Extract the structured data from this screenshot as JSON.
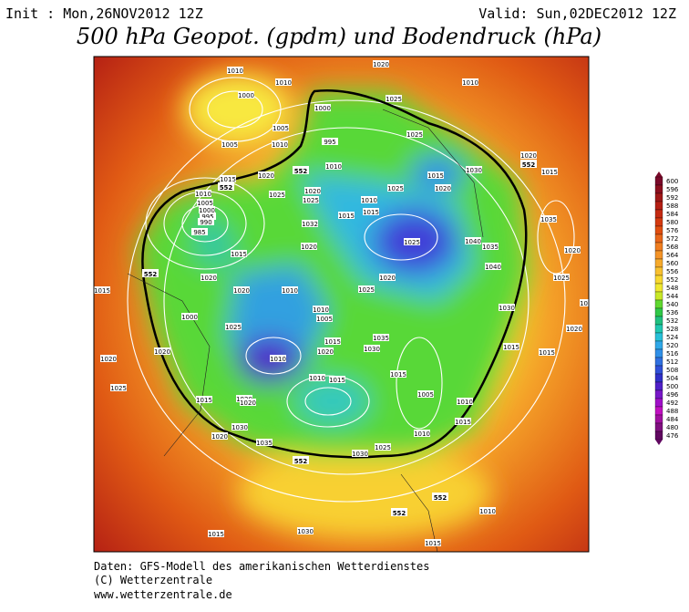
{
  "header": {
    "init": "Init : Mon,26NOV2012 12Z",
    "valid": "Valid: Sun,02DEC2012 12Z",
    "title": "500 hPa Geopot. (gpdm) und Bodendruck (hPa)"
  },
  "colorbar": {
    "labels": [
      600,
      596,
      592,
      588,
      584,
      580,
      576,
      572,
      568,
      564,
      560,
      556,
      552,
      548,
      544,
      540,
      536,
      532,
      528,
      524,
      520,
      516,
      512,
      508,
      504,
      500,
      496,
      492,
      488,
      484,
      480,
      476
    ],
    "colors": [
      "#7a0a2a",
      "#8c0f1f",
      "#a01818",
      "#b41f14",
      "#c42a12",
      "#d43a10",
      "#e04e10",
      "#e8661a",
      "#f07e20",
      "#f49428",
      "#f6aa2c",
      "#f8c030",
      "#f8d830",
      "#f0e830",
      "#c8e828",
      "#60d830",
      "#30c848",
      "#20c080",
      "#20c8b0",
      "#28c0d8",
      "#30a8e8",
      "#3090e8",
      "#3070e0",
      "#3050d8",
      "#3030c8",
      "#5020c8",
      "#7818c8",
      "#a010c8",
      "#c010c0",
      "#a010a0",
      "#801080",
      "#600860"
    ]
  },
  "map": {
    "isobar_labels": [
      "1010",
      "1010",
      "1020",
      "1010",
      "1000",
      "1005",
      "1025",
      "1000",
      "995",
      "1005",
      "1010",
      "1025",
      "1020",
      "1015",
      "1020",
      "1010",
      "1030",
      "1015",
      "1010",
      "1005",
      "1000",
      "995",
      "990",
      "985",
      "1025",
      "1020",
      "1025",
      "1010",
      "1015",
      "1015",
      "1025",
      "1020",
      "1032",
      "1015",
      "1035",
      "1020",
      "1040",
      "1035",
      "1025",
      "1020",
      "1015",
      "1015",
      "1020",
      "1020",
      "1010",
      "1010",
      "1005",
      "1025",
      "1020",
      "1040",
      "1025",
      "1025",
      "1030",
      "1000",
      "1025",
      "1010",
      "1035",
      "1030",
      "1020",
      "1015",
      "1020",
      "1020",
      "1025",
      "1015",
      "1020",
      "1010",
      "1015",
      "1015",
      "1010",
      "1005",
      "1015",
      "1010",
      "1030",
      "1020",
      "1035",
      "1030",
      "1020",
      "1015",
      "1015",
      "1030",
      "1010",
      "1015",
      "1015",
      "1025",
      "1020"
    ],
    "contour_labels": [
      "552",
      "552",
      "552",
      "552",
      "552",
      "552",
      "552"
    ]
  },
  "footer": {
    "lines": [
      "Daten: GFS-Modell des amerikanischen Wetterdienstes",
      "(C) Wetterzentrale",
      "www.wetterzentrale.de"
    ]
  }
}
